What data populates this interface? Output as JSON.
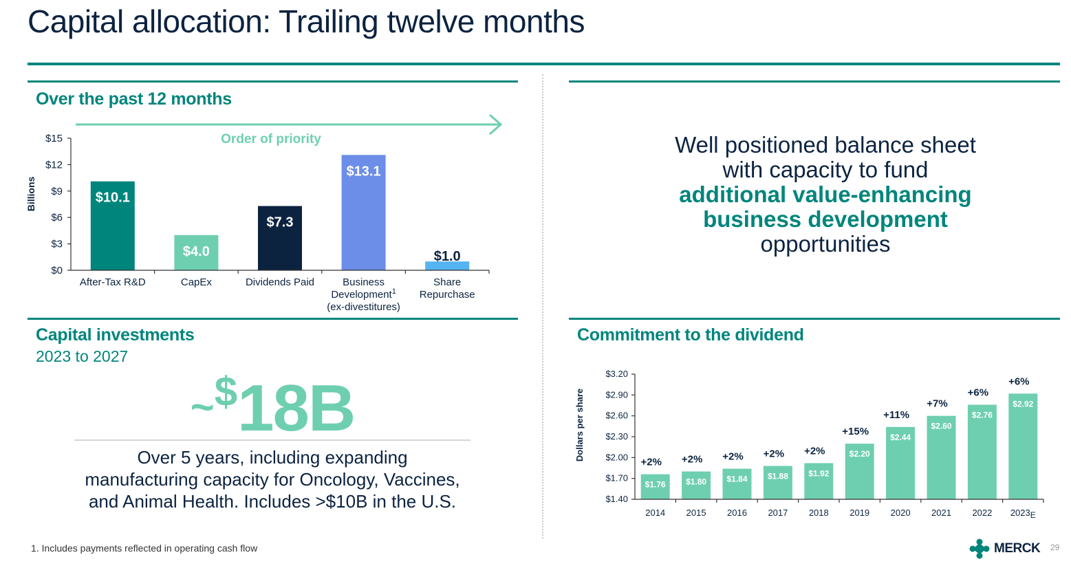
{
  "page": {
    "title": "Capital allocation: Trailing twelve months",
    "footnote": "1. Includes payments reflected in operating cash flow",
    "page_number": "29",
    "logo_text": "MERCK"
  },
  "colors": {
    "primary_teal": "#00857c",
    "light_teal": "#6ecfb0",
    "navy": "#0c2340",
    "blue": "#6c8de8",
    "light_blue": "#55b3f0"
  },
  "past12": {
    "title": "Over the past 12 months",
    "priority_label": "Order of priority"
  },
  "balance": {
    "line1": "Well positioned balance sheet",
    "line2": "with capacity to fund",
    "highlight1": "additional value-enhancing",
    "highlight2": "business development",
    "line5": "opportunities"
  },
  "investments": {
    "title": "Capital investments",
    "subtitle": "2023 to 2027",
    "big_tilde": "~",
    "big_dollar": "$",
    "big_value": "18B",
    "desc1": "Over 5 years, including expanding",
    "desc2": "manufacturing capacity for Oncology, Vaccines,",
    "desc3": "and Animal Health. Includes >$10B in the U.S."
  },
  "dividend": {
    "title": "Commitment to the dividend"
  },
  "chart_data": [
    {
      "type": "bar",
      "title": "Over the past 12 months",
      "ylabel": "Billions",
      "ylim": [
        0,
        15
      ],
      "yticks": [
        0,
        3,
        6,
        9,
        12,
        15
      ],
      "ytick_labels": [
        "$0",
        "$3",
        "$6",
        "$9",
        "$12",
        "$15"
      ],
      "categories": [
        [
          "After-Tax R&D"
        ],
        [
          "CapEx"
        ],
        [
          "Dividends Paid"
        ],
        [
          "Business",
          "Development",
          "(ex-divestitures)"
        ],
        [
          "Share",
          "Repurchase"
        ]
      ],
      "superscripts": [
        "",
        "",
        "",
        "1",
        ""
      ],
      "values": [
        10.1,
        4.0,
        7.3,
        13.1,
        1.0
      ],
      "value_labels": [
        "$10.1",
        "$4.0",
        "$7.3",
        "$13.1",
        "$1.0"
      ],
      "bar_colors": [
        "#00857c",
        "#6ecfb0",
        "#0c2340",
        "#6c8de8",
        "#55b3f0"
      ],
      "label_colors": [
        "#ffffff",
        "#ffffff",
        "#ffffff",
        "#ffffff",
        "#0c2340"
      ]
    },
    {
      "type": "bar",
      "title": "Commitment to the dividend",
      "ylabel": "Dollars per share",
      "ylim": [
        1.4,
        3.2
      ],
      "yticks": [
        1.4,
        1.7,
        2.0,
        2.3,
        2.6,
        2.9,
        3.2
      ],
      "ytick_labels": [
        "$1.40",
        "$1.70",
        "$2.00",
        "$2.30",
        "$2.60",
        "$2.90",
        "$3.20"
      ],
      "categories": [
        "2014",
        "2015",
        "2016",
        "2017",
        "2018",
        "2019",
        "2020",
        "2021",
        "2022",
        "2023"
      ],
      "category_suffix": [
        "",
        "",
        "",
        "",
        "",
        "",
        "",
        "",
        "",
        "E"
      ],
      "values": [
        1.76,
        1.8,
        1.84,
        1.88,
        1.92,
        2.2,
        2.44,
        2.6,
        2.76,
        2.92
      ],
      "value_labels": [
        "$1.76",
        "$1.80",
        "$1.84",
        "$1.88",
        "$1.92",
        "$2.20",
        "$2.44",
        "$2.60",
        "$2.76",
        "$2.92"
      ],
      "growth_labels": [
        "+2%",
        "+2%",
        "+2%",
        "+2%",
        "+2%",
        "+15%",
        "+11%",
        "+7%",
        "+6%",
        "+6%"
      ],
      "bar_color": "#6ecfb0"
    }
  ]
}
